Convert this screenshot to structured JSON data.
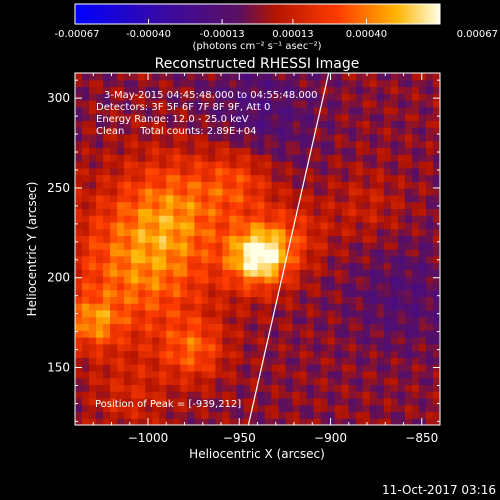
{
  "chart_data": {
    "type": "heatmap",
    "title": "Reconstructed RHESSI Image",
    "xlabel": "Heliocentric X (arcsec)",
    "ylabel": "Heliocentric Y (arcsec)",
    "xlim": [
      -1040,
      -840
    ],
    "ylim": [
      118,
      314
    ],
    "xticks": [
      -1000,
      -950,
      -900,
      -850
    ],
    "xtick_labels": [
      "−1000",
      "−950",
      "−900",
      "−850"
    ],
    "yticks": [
      150,
      200,
      250,
      300
    ],
    "ytick_labels": [
      "150",
      "200",
      "250",
      "300"
    ],
    "colorbar": {
      "min": -0.00067,
      "max": 0.00067,
      "ticks": [
        -0.00067,
        -0.0004,
        -0.00013,
        0.00013,
        0.0004,
        0.00067
      ],
      "tick_labels": [
        "-0.00067",
        "-0.00040",
        "-0.00013",
        "0.00013",
        "0.00040",
        "0.00067"
      ],
      "unit_label": "(photons cm⁻² s⁻¹ asec⁻²)"
    },
    "annotations": [
      "3-May-2015 04:45:48.000 to 04:55:48.000",
      "Detectors: 3F 5F 6F 7F 8F 9F, Att 0",
      "Energy Range: 12.0 - 25.0 keV",
      "Clean     Total counts: 2.89E+04"
    ],
    "peak_label": "Position of Peak = [-939,212]",
    "peak": {
      "x": -939,
      "y": 212
    },
    "limb_line": [
      {
        "x": -945,
        "y": 118
      },
      {
        "x": -901,
        "y": 314
      }
    ],
    "sources": [
      {
        "x": -939,
        "y": 212,
        "amplitude": 0.00067,
        "sigma": 12
      },
      {
        "x": -1005,
        "y": 205,
        "amplitude": 0.00038,
        "sigma": 28
      },
      {
        "x": -985,
        "y": 240,
        "amplitude": 0.0003,
        "sigma": 22
      },
      {
        "x": -1030,
        "y": 175,
        "amplitude": 0.00032,
        "sigma": 10
      },
      {
        "x": -975,
        "y": 160,
        "amplitude": 0.0003,
        "sigma": 12
      },
      {
        "x": -950,
        "y": 255,
        "amplitude": 0.00025,
        "sigma": 14
      },
      {
        "x": -920,
        "y": 225,
        "amplitude": 0.00018,
        "sigma": 14
      },
      {
        "x": -1010,
        "y": 135,
        "amplitude": 0.00014,
        "sigma": 16
      },
      {
        "x": -880,
        "y": 240,
        "amplitude": 0.00012,
        "sigma": 14
      },
      {
        "x": -940,
        "y": 290,
        "amplitude": -0.00015,
        "sigma": 22
      },
      {
        "x": -860,
        "y": 190,
        "amplitude": -0.00012,
        "sigma": 22
      }
    ]
  },
  "footer": {
    "timestamp": "11-Oct-2017 03:16"
  }
}
